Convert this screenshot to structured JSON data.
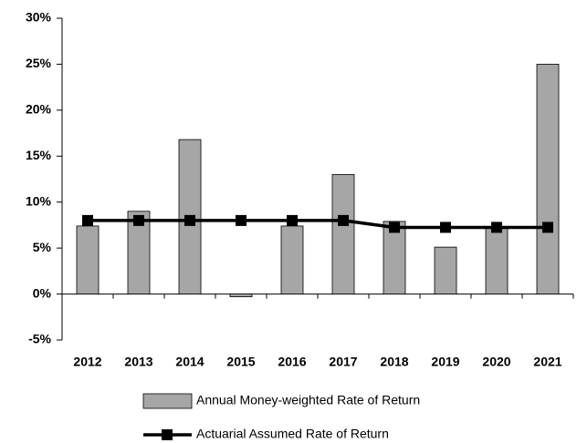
{
  "chart_data": {
    "type": "combo",
    "categories": [
      "2012",
      "2013",
      "2014",
      "2015",
      "2016",
      "2017",
      "2018",
      "2019",
      "2020",
      "2021"
    ],
    "series": [
      {
        "name": "Annual Money-weighted Rate of Return",
        "type": "bar",
        "color": "#a6a6a6",
        "values": [
          7.4,
          9.0,
          16.8,
          -0.3,
          7.4,
          13.0,
          7.9,
          5.1,
          7.2,
          25.0
        ]
      },
      {
        "name": "Actuarial Assumed Rate of Return",
        "type": "line",
        "color": "#000000",
        "values": [
          8.0,
          8.0,
          8.0,
          8.0,
          8.0,
          8.0,
          7.25,
          7.25,
          7.25,
          7.25
        ]
      }
    ],
    "ylim": [
      -5,
      30
    ],
    "yticks": [
      {
        "value": -5,
        "label": "-5%"
      },
      {
        "value": 0,
        "label": "0%"
      },
      {
        "value": 5,
        "label": "5%"
      },
      {
        "value": 10,
        "label": "10%"
      },
      {
        "value": 15,
        "label": "15%"
      },
      {
        "value": 20,
        "label": "20%"
      },
      {
        "value": 25,
        "label": "25%"
      },
      {
        "value": 30,
        "label": "30%"
      }
    ],
    "grid": false,
    "legend": "bottom"
  }
}
